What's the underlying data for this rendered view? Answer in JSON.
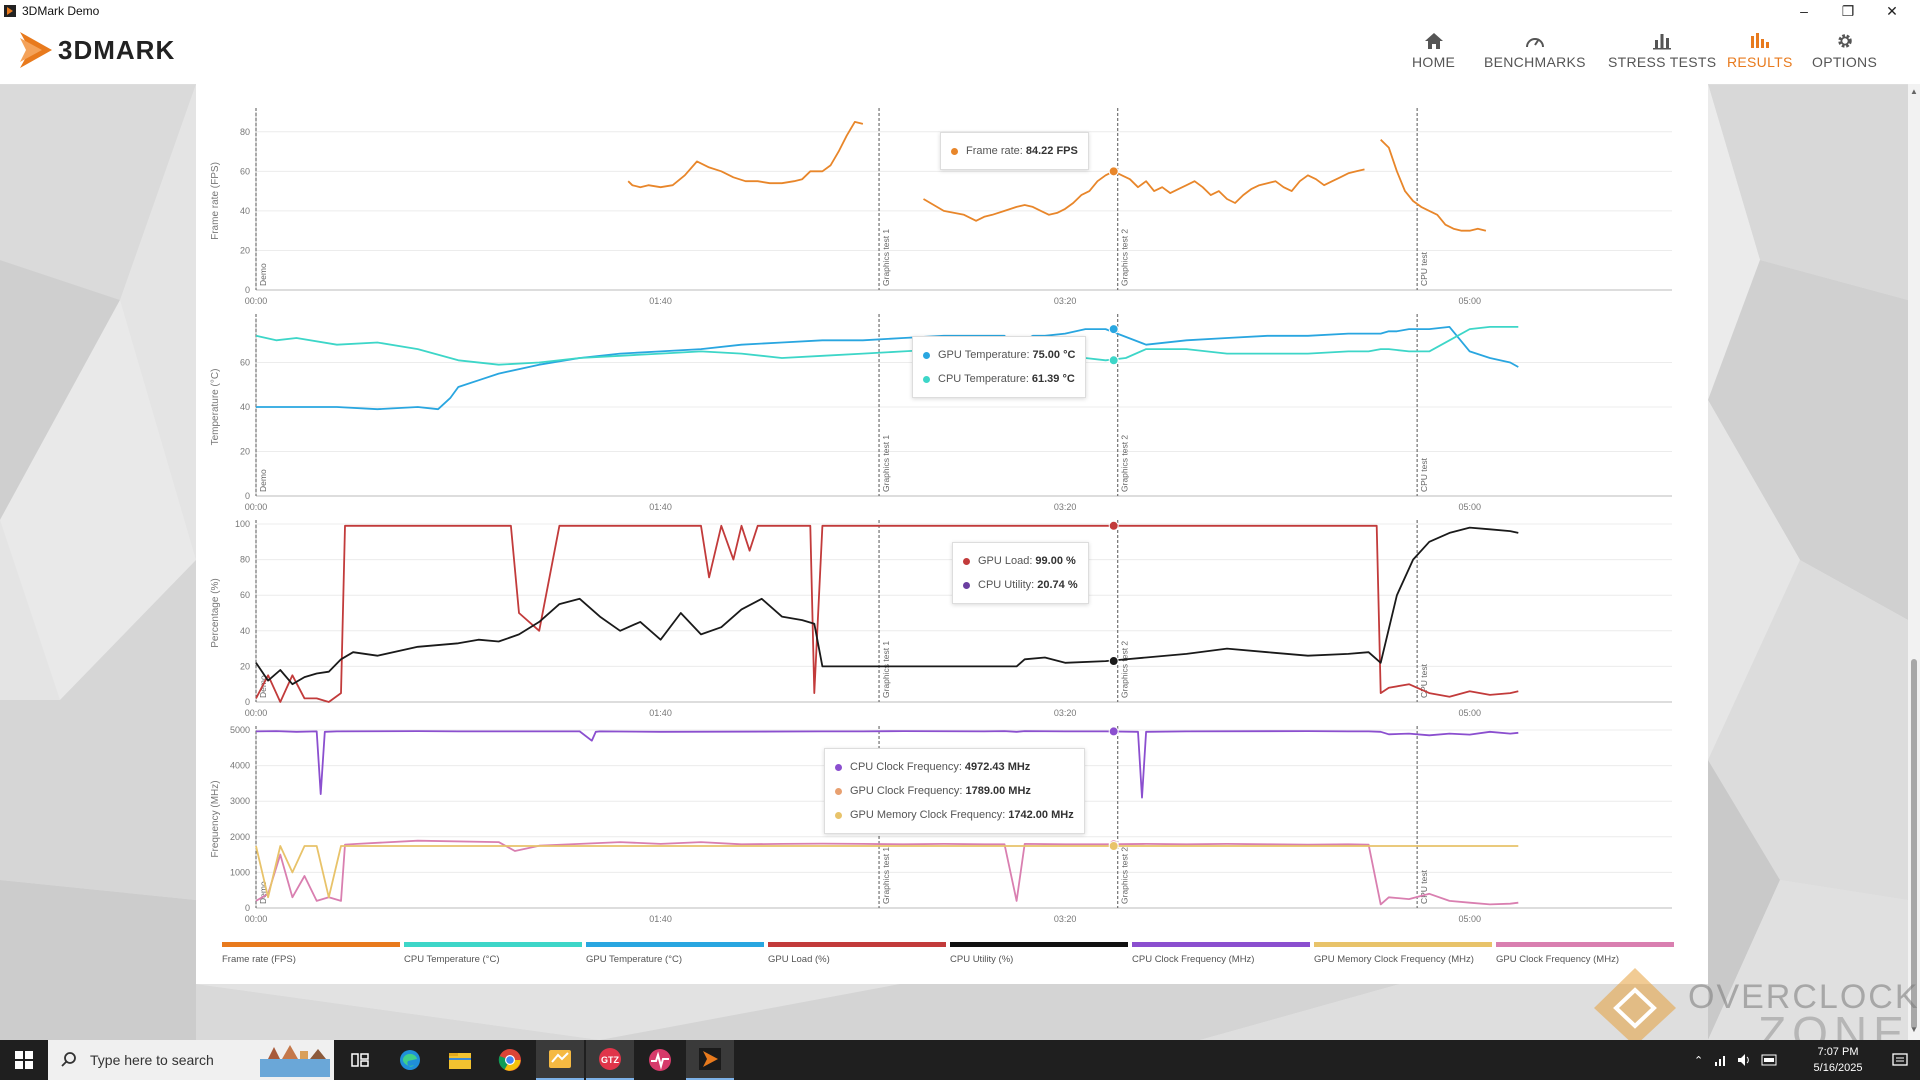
{
  "window": {
    "title": "3DMark Demo"
  },
  "header": {
    "logo": "3DMARK",
    "nav": [
      {
        "label": "HOME",
        "icon": "home-icon",
        "active": false
      },
      {
        "label": "BENCHMARKS",
        "icon": "gauge-icon",
        "active": false
      },
      {
        "label": "STRESS TESTS",
        "icon": "bar-chart-icon",
        "active": false
      },
      {
        "label": "RESULTS",
        "icon": "results-icon",
        "active": true
      },
      {
        "label": "OPTIONS",
        "icon": "gear-icon",
        "active": false
      }
    ],
    "accent": "#e87a1d"
  },
  "chart_data": [
    {
      "type": "line",
      "ylabel": "Frame rate (FPS)",
      "ylim": [
        0,
        90
      ],
      "yticks": [
        0,
        20,
        40,
        60,
        80
      ],
      "xticks": [
        "00:00",
        "01:40",
        "03:20",
        "05:00"
      ],
      "markers": [
        "Demo",
        "Graphics test 1",
        "Graphics test 2",
        "CPU test"
      ],
      "series": [
        {
          "name": "Frame rate",
          "color": "#e8862a",
          "x": [
            92,
            93,
            95,
            97,
            100,
            103,
            106,
            109,
            112,
            115,
            118,
            121,
            124,
            127,
            130,
            133,
            135,
            136,
            137,
            138,
            140,
            142,
            144,
            146,
            148,
            150,
            152,
            154,
            156,
            158,
            160,
            165,
            170,
            175,
            178,
            180,
            182,
            185,
            188,
            190,
            192,
            194,
            196,
            198,
            200,
            202,
            204,
            206,
            208,
            210,
            212,
            214,
            216,
            218,
            220,
            222,
            224,
            226,
            228,
            230,
            232,
            234,
            236,
            238,
            240,
            242,
            244,
            246,
            248,
            250,
            252,
            254,
            256,
            258,
            260,
            262,
            264,
            266,
            268,
            270,
            272,
            274,
            276,
            278,
            280,
            282,
            284,
            286,
            288,
            290,
            292,
            294,
            296,
            298,
            300,
            302,
            304,
            306,
            308,
            310,
            312
          ],
          "y": [
            55,
            53,
            52,
            53,
            52,
            53,
            58,
            65,
            62,
            60,
            57,
            55,
            55,
            54,
            54,
            55,
            56,
            58,
            60,
            60,
            60,
            63,
            70,
            78,
            85,
            84,
            null,
            null,
            null,
            null,
            null,
            46,
            40,
            38,
            35,
            37,
            38,
            40,
            42,
            43,
            42,
            40,
            38,
            39,
            41,
            44,
            48,
            50,
            55,
            58,
            60,
            58,
            56,
            52,
            55,
            50,
            52,
            49,
            51,
            53,
            55,
            52,
            48,
            50,
            46,
            44,
            48,
            51,
            53,
            54,
            55,
            52,
            50,
            55,
            58,
            56,
            53,
            55,
            57,
            59,
            60,
            61,
            null,
            76,
            72,
            60,
            50,
            45,
            42,
            40,
            38,
            33,
            31,
            30,
            30,
            31,
            30,
            null,
            null,
            null,
            null
          ]
        }
      ]
    },
    {
      "type": "line",
      "ylabel": "Temperature (°C)",
      "ylim": [
        0,
        80
      ],
      "yticks": [
        0,
        20,
        40,
        60
      ],
      "xticks": [
        "00:00",
        "01:40",
        "03:20",
        "05:00"
      ],
      "markers": [
        "Demo",
        "Graphics test 1",
        "Graphics test 2",
        "CPU test"
      ],
      "series": [
        {
          "name": "GPU Temperature",
          "color": "#29a6e0",
          "x": [
            0,
            20,
            30,
            40,
            45,
            48,
            50,
            55,
            60,
            70,
            80,
            90,
            100,
            110,
            120,
            130,
            140,
            150,
            160,
            170,
            180,
            185,
            188,
            190,
            192,
            195,
            200,
            205,
            210,
            220,
            230,
            240,
            250,
            260,
            270,
            275,
            278,
            280,
            282,
            285,
            290,
            295,
            300,
            305,
            310,
            312
          ],
          "y": [
            40,
            40,
            39,
            40,
            39,
            44,
            49,
            52,
            55,
            59,
            62,
            64,
            65,
            66,
            68,
            69,
            70,
            70,
            71,
            72,
            72,
            72,
            64,
            70,
            72,
            72,
            73,
            75,
            75,
            68,
            70,
            71,
            72,
            72,
            73,
            73,
            73,
            74,
            74,
            75,
            75,
            76,
            65,
            62,
            60,
            58
          ]
        },
        {
          "name": "CPU Temperature",
          "color": "#3dd6c8",
          "x": [
            0,
            5,
            10,
            20,
            30,
            40,
            50,
            60,
            70,
            80,
            90,
            100,
            110,
            120,
            130,
            140,
            150,
            160,
            170,
            180,
            185,
            188,
            190,
            195,
            200,
            205,
            210,
            215,
            220,
            230,
            240,
            250,
            260,
            270,
            275,
            278,
            280,
            285,
            290,
            295,
            300,
            305,
            310,
            312
          ],
          "y": [
            72,
            70,
            71,
            68,
            69,
            66,
            61,
            59,
            60,
            62,
            63,
            64,
            65,
            64,
            62,
            63,
            64,
            65,
            66,
            65,
            66,
            57,
            65,
            67,
            68,
            62,
            61,
            62,
            66,
            66,
            64,
            64,
            64,
            65,
            65,
            66,
            66,
            65,
            65,
            70,
            75,
            76,
            76,
            76
          ]
        }
      ]
    },
    {
      "type": "line",
      "ylabel": "Percentage (%)",
      "ylim": [
        0,
        100
      ],
      "yticks": [
        0,
        20,
        40,
        60,
        80,
        100
      ],
      "xticks": [
        "00:00",
        "01:40",
        "03:20",
        "05:00"
      ],
      "markers": [
        "Demo",
        "Graphics test 1",
        "Graphics test 2",
        "CPU test"
      ],
      "series": [
        {
          "name": "GPU Load",
          "color": "#c23b3b",
          "x": [
            0,
            3,
            6,
            9,
            12,
            15,
            18,
            21,
            22,
            25,
            30,
            40,
            50,
            60,
            63,
            65,
            70,
            75,
            80,
            82,
            85,
            90,
            100,
            110,
            112,
            115,
            118,
            120,
            122,
            124,
            126,
            128,
            130,
            134,
            136,
            137,
            138,
            140,
            150,
            160,
            170,
            180,
            190,
            195,
            200,
            210,
            220,
            230,
            240,
            250,
            260,
            270,
            275,
            277,
            278,
            280,
            285,
            290,
            295,
            300,
            305,
            310,
            312
          ],
          "y": [
            2,
            15,
            0,
            15,
            2,
            2,
            0,
            5,
            99,
            99,
            99,
            99,
            99,
            99,
            99,
            50,
            40,
            99,
            99,
            99,
            99,
            99,
            99,
            99,
            70,
            99,
            80,
            99,
            85,
            99,
            99,
            99,
            99,
            99,
            99,
            99,
            5,
            99,
            99,
            99,
            99,
            99,
            99,
            99,
            99,
            99,
            99,
            99,
            99,
            99,
            99,
            99,
            99,
            99,
            5,
            8,
            10,
            5,
            3,
            6,
            4,
            5,
            6
          ]
        },
        {
          "name": "CPU Utility",
          "color": "#1a1a1a",
          "x": [
            0,
            3,
            6,
            9,
            12,
            15,
            18,
            21,
            24,
            30,
            40,
            50,
            55,
            60,
            65,
            70,
            75,
            80,
            85,
            90,
            95,
            100,
            105,
            110,
            115,
            120,
            125,
            130,
            135,
            138,
            140,
            150,
            160,
            170,
            180,
            185,
            188,
            190,
            195,
            200,
            210,
            220,
            230,
            240,
            250,
            260,
            270,
            275,
            278,
            282,
            286,
            290,
            295,
            300,
            305,
            310,
            312
          ],
          "y": [
            22,
            12,
            18,
            10,
            14,
            16,
            17,
            24,
            28,
            26,
            31,
            33,
            35,
            34,
            38,
            45,
            55,
            58,
            48,
            40,
            45,
            35,
            50,
            38,
            42,
            52,
            58,
            48,
            46,
            44,
            20,
            20,
            20,
            20,
            20,
            20,
            20,
            24,
            25,
            22,
            23,
            25,
            27,
            30,
            28,
            26,
            27,
            28,
            22,
            60,
            80,
            90,
            95,
            98,
            97,
            96,
            95
          ]
        }
      ]
    },
    {
      "type": "line",
      "ylabel": "Frequency (MHz)",
      "ylim": [
        0,
        5000
      ],
      "yticks": [
        0,
        1000,
        2000,
        3000,
        4000,
        5000
      ],
      "xticks": [
        "00:00",
        "01:40",
        "03:20",
        "05:00"
      ],
      "markers": [
        "Demo",
        "Graphics test 1",
        "Graphics test 2",
        "CPU test"
      ],
      "series": [
        {
          "name": "CPU Clock Frequency",
          "color": "#8b4fcf",
          "x": [
            0,
            5,
            10,
            15,
            16,
            17,
            20,
            40,
            50,
            80,
            83,
            84,
            85,
            100,
            140,
            150,
            160,
            180,
            185,
            188,
            190,
            200,
            210,
            218,
            219,
            220,
            230,
            260,
            270,
            275,
            278,
            280,
            285,
            290,
            295,
            300,
            305,
            310,
            312
          ],
          "y": [
            4960,
            4970,
            4950,
            4960,
            3200,
            4950,
            4960,
            4970,
            4960,
            4960,
            4700,
            4950,
            4960,
            4950,
            4960,
            4960,
            4970,
            4960,
            4970,
            4950,
            4970,
            4960,
            4960,
            4950,
            3100,
            4950,
            4960,
            4970,
            4960,
            4960,
            4950,
            4880,
            4900,
            4850,
            4900,
            4870,
            4950,
            4900,
            4920
          ]
        },
        {
          "name": "GPU Clock Frequency",
          "color": "#d97fb0",
          "x": [
            0,
            3,
            6,
            9,
            12,
            15,
            18,
            21,
            22,
            25,
            40,
            60,
            64,
            70,
            80,
            90,
            100,
            110,
            120,
            130,
            140,
            150,
            160,
            170,
            180,
            185,
            188,
            190,
            200,
            210,
            220,
            230,
            240,
            250,
            260,
            270,
            275,
            278,
            280,
            285,
            290,
            295,
            300,
            305,
            310,
            312
          ],
          "y": [
            200,
            400,
            1500,
            300,
            900,
            200,
            300,
            200,
            1780,
            1800,
            1890,
            1850,
            1600,
            1750,
            1800,
            1850,
            1800,
            1850,
            1790,
            1800,
            1810,
            1800,
            1790,
            1800,
            1790,
            1790,
            200,
            1800,
            1790,
            1790,
            1800,
            1790,
            1800,
            1790,
            1780,
            1790,
            1780,
            100,
            300,
            250,
            400,
            200,
            150,
            100,
            120,
            150
          ]
        },
        {
          "name": "GPU Memory Clock Frequency",
          "color": "#e8c36a",
          "x": [
            0,
            3,
            6,
            9,
            12,
            15,
            18,
            21,
            22,
            25,
            60,
            100,
            140,
            180,
            185,
            188,
            190,
            230,
            270,
            275,
            278,
            280,
            300,
            312
          ],
          "y": [
            1742,
            300,
            1742,
            1000,
            1742,
            1742,
            300,
            1742,
            1742,
            1742,
            1742,
            1742,
            1742,
            1742,
            1742,
            1742,
            1742,
            1742,
            1742,
            1742,
            1742,
            1742,
            1742,
            1742
          ]
        }
      ]
    }
  ],
  "tooltips": [
    {
      "items": [
        {
          "label": "Frame rate:",
          "value": "84.22 FPS",
          "color": "#e8862a"
        }
      ]
    },
    {
      "items": [
        {
          "label": "GPU Temperature:",
          "value": "75.00 °C",
          "color": "#29a6e0"
        },
        {
          "label": "CPU Temperature:",
          "value": "61.39 °C",
          "color": "#3dd6c8"
        }
      ]
    },
    {
      "items": [
        {
          "label": "GPU Load:",
          "value": "99.00 %",
          "color": "#c23b3b"
        },
        {
          "label": "CPU Utility:",
          "value": "20.74 %",
          "color": "#6b3fa0"
        }
      ]
    },
    {
      "items": [
        {
          "label": "CPU Clock Frequency:",
          "value": "4972.43 MHz",
          "color": "#8b4fcf"
        },
        {
          "label": "GPU Clock Frequency:",
          "value": "1789.00 MHz",
          "color": "#e8a070"
        },
        {
          "label": "GPU Memory Clock Frequency:",
          "value": "1742.00 MHz",
          "color": "#e8c36a"
        }
      ]
    }
  ],
  "legend": [
    {
      "label": "Frame rate (FPS)",
      "color": "#e87a1d"
    },
    {
      "label": "CPU Temperature (°C)",
      "color": "#3dd6c8"
    },
    {
      "label": "GPU Temperature (°C)",
      "color": "#29a6e0"
    },
    {
      "label": "GPU Load (%)",
      "color": "#c23b3b"
    },
    {
      "label": "CPU Utility (%)",
      "color": "#111111"
    },
    {
      "label": "CPU Clock Frequency (MHz)",
      "color": "#8b4fcf"
    },
    {
      "label": "GPU Memory Clock Frequency (MHz)",
      "color": "#e8c36a"
    },
    {
      "label": "GPU Clock Frequency (MHz)",
      "color": "#d97fb0"
    }
  ],
  "watermark": {
    "line1": "OVERCLOCK",
    "line2": "ZONE"
  },
  "taskbar": {
    "search_placeholder": "Type here to search",
    "apps": [
      "task-view-icon",
      "edge-icon",
      "file-explorer-icon",
      "chrome-icon",
      "notes-icon",
      "gpu-tool-icon",
      "monitor-app-icon",
      "3dmark-icon"
    ],
    "clock_time": "7:07 PM",
    "clock_date": "5/16/2025"
  }
}
